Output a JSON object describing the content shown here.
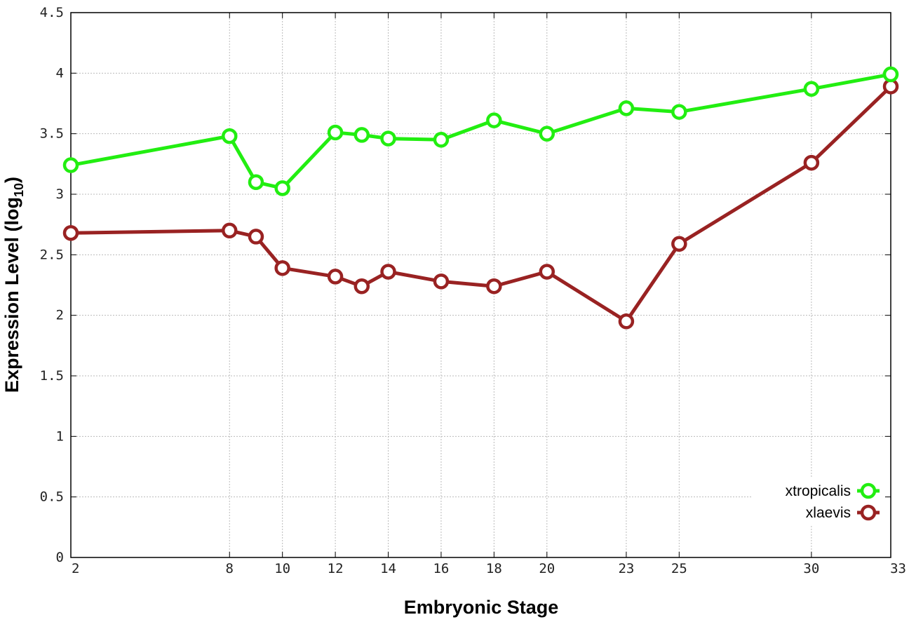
{
  "chart_data": {
    "type": "line",
    "xlabel": "Embryonic Stage",
    "ylabel_main": "Expression Level (log",
    "ylabel_sub": "10",
    "ylabel_close": ")",
    "xlim": [
      2,
      33
    ],
    "ylim": [
      0,
      4.5
    ],
    "x": [
      2,
      8,
      9,
      10,
      12,
      13,
      14,
      16,
      18,
      20,
      23,
      25,
      30,
      33
    ],
    "x_ticks": [
      "2",
      "8",
      "10",
      "12",
      "14",
      "16",
      "18",
      "20",
      "23",
      "25",
      "30",
      "33"
    ],
    "x_tick_values": [
      2,
      8,
      10,
      12,
      14,
      16,
      18,
      20,
      23,
      25,
      30,
      33
    ],
    "y_ticks": [
      "0",
      "0.5",
      "1",
      "1.5",
      "2",
      "2.5",
      "3",
      "3.5",
      "4",
      "4.5"
    ],
    "y_tick_values": [
      0,
      0.5,
      1,
      1.5,
      2,
      2.5,
      3,
      3.5,
      4,
      4.5
    ],
    "grid": true,
    "legend_position": "bottom-right",
    "series": [
      {
        "name": "xtropicalis",
        "color": "#22ee11",
        "values": [
          3.24,
          3.48,
          3.1,
          3.05,
          3.51,
          3.49,
          3.46,
          3.45,
          3.61,
          3.5,
          3.71,
          3.68,
          3.87,
          3.99
        ]
      },
      {
        "name": "xlaevis",
        "color": "#992222",
        "values": [
          2.68,
          2.7,
          2.65,
          2.39,
          2.32,
          2.24,
          2.36,
          2.28,
          2.24,
          2.36,
          1.95,
          2.59,
          3.26,
          3.89
        ]
      }
    ]
  }
}
